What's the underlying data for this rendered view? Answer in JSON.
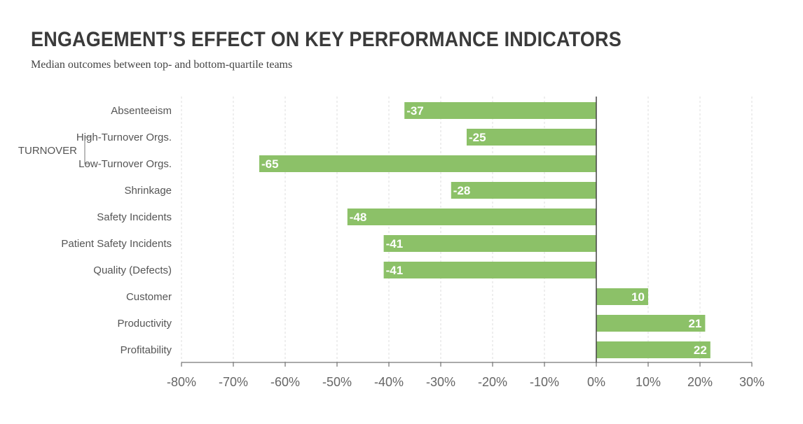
{
  "title": "ENGAGEMENT’S EFFECT ON KEY PERFORMANCE INDICATORS",
  "subtitle": "Median outcomes between top- and bottom-quartile teams",
  "colors": {
    "bar": "#8cc168",
    "grid": "#dddddd",
    "axis": "#555555",
    "zero_line": "#444444"
  },
  "chart_data": {
    "type": "bar",
    "orientation": "horizontal",
    "categories": [
      "Absenteeism",
      "High-Turnover Orgs.",
      "Low-Turnover Orgs.",
      "Shrinkage",
      "Safety Incidents",
      "Patient Safety Incidents",
      "Quality (Defects)",
      "Customer",
      "Productivity",
      "Profitability"
    ],
    "values": [
      -37,
      -25,
      -65,
      -28,
      -48,
      -41,
      -41,
      10,
      21,
      22
    ],
    "data_labels": [
      "-37",
      "-25",
      "-65",
      "-28",
      "-48",
      "-41",
      "-41",
      "10",
      "21",
      "22"
    ],
    "category_groups": [
      {
        "label": "TURNOVER",
        "members": [
          "High-Turnover Orgs.",
          "Low-Turnover Orgs."
        ]
      }
    ],
    "xlim": [
      -80,
      30
    ],
    "x_ticks": [
      -80,
      -70,
      -60,
      -50,
      -40,
      -30,
      -20,
      -10,
      0,
      10,
      20,
      30
    ],
    "x_tick_labels": [
      "-80%",
      "-70%",
      "-60%",
      "-50%",
      "-40%",
      "-30%",
      "-20%",
      "-10%",
      "0%",
      "10%",
      "20%",
      "30%"
    ],
    "grid": "vertical dashed",
    "legend": "none"
  }
}
